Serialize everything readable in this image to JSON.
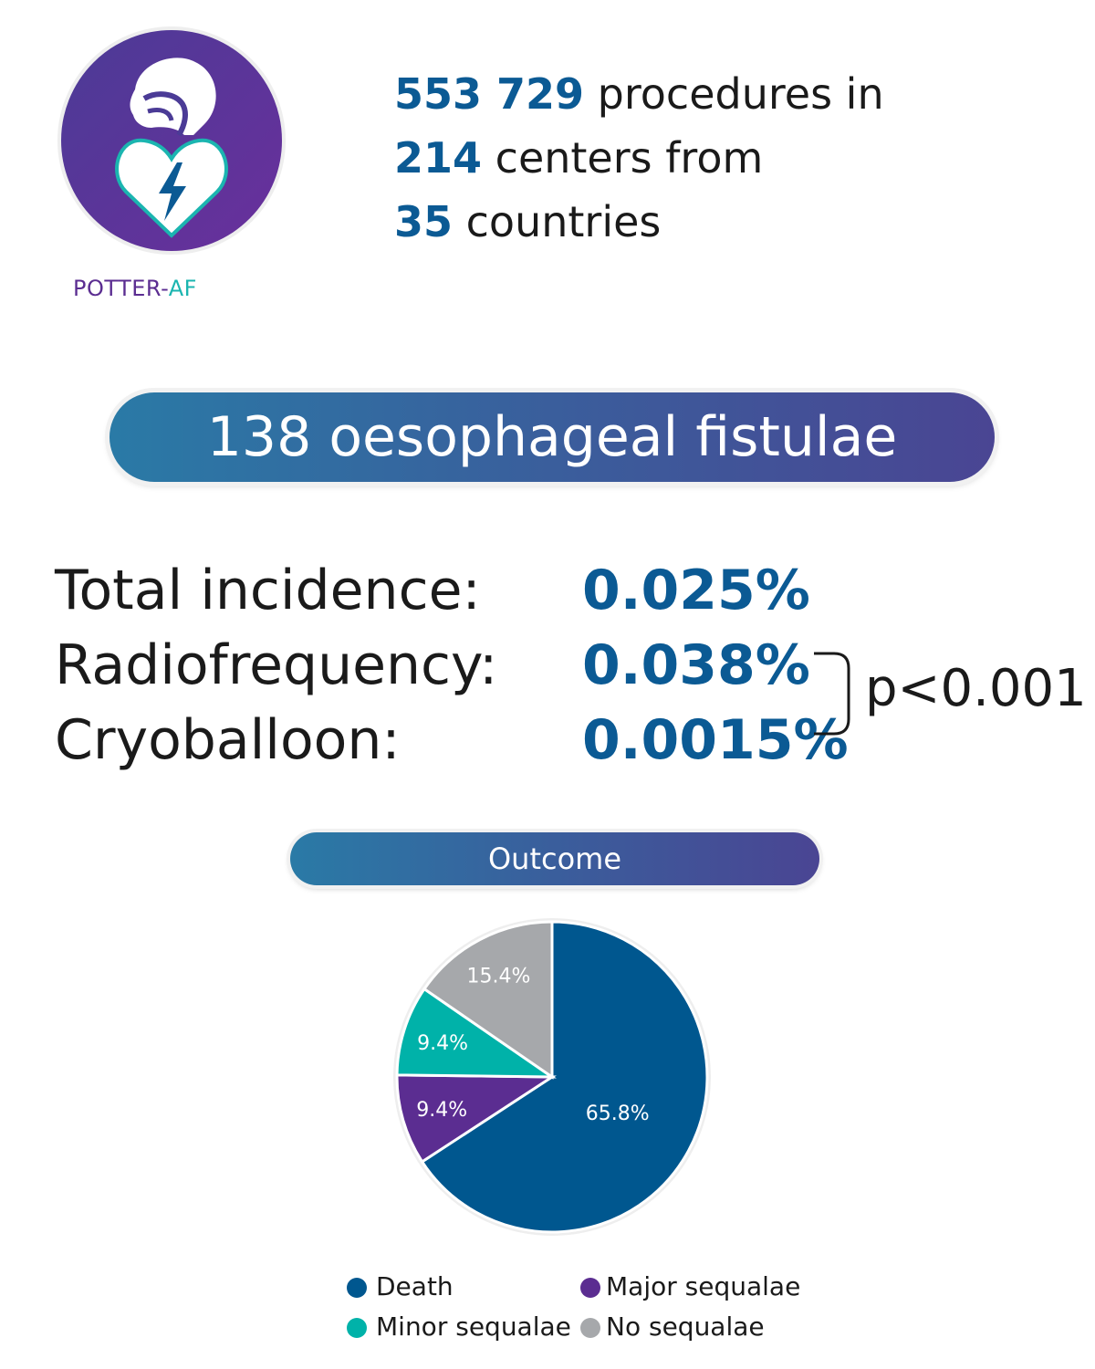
{
  "logo": {
    "name_part1": "POTTER-",
    "name_part2": "AF",
    "icon": "head-and-heart-lightning-icon",
    "colors": {
      "circle_dark": "#5b2d91",
      "circle_mid": "#6a3ea1",
      "accent": "#1bb5b0"
    }
  },
  "stats": {
    "procedures_number": "553 729",
    "procedures_text": " procedures in",
    "centers_number": "214",
    "centers_text": " centers from",
    "countries_number": "35",
    "countries_text": " countries"
  },
  "banner": {
    "title": "138 oesophageal fistulae"
  },
  "incidence": {
    "rows": [
      {
        "label": "Total incidence:",
        "value": "0.025%"
      },
      {
        "label": "Radiofrequency:",
        "value": "0.038%"
      },
      {
        "label": "Cryoballoon:",
        "value": "0.0015%"
      }
    ],
    "pvalue": "p<0.001"
  },
  "outcome": {
    "title": "Outcome"
  },
  "chart_data": {
    "type": "pie",
    "title": "Outcome",
    "categories": [
      "Death",
      "Major sequalae",
      "Minor sequalae",
      "No sequalae"
    ],
    "values": [
      65.8,
      9.4,
      9.4,
      15.4
    ],
    "labels": [
      "65.8%",
      "9.4%",
      "9.4%",
      "15.4%"
    ],
    "colors": [
      "#00578f",
      "#5b2d91",
      "#00b2a9",
      "#a6a8ab"
    ],
    "legend_placement": "bottom",
    "legend": [
      {
        "name": "Death",
        "color": "#00578f"
      },
      {
        "name": "Major sequalae",
        "color": "#5b2d91"
      },
      {
        "name": "Minor sequalae",
        "color": "#00b2a9"
      },
      {
        "name": "No sequalae",
        "color": "#a6a8ab"
      }
    ]
  },
  "colors": {
    "accent_blue": "#0b5a94",
    "text": "#1a1a1a"
  }
}
